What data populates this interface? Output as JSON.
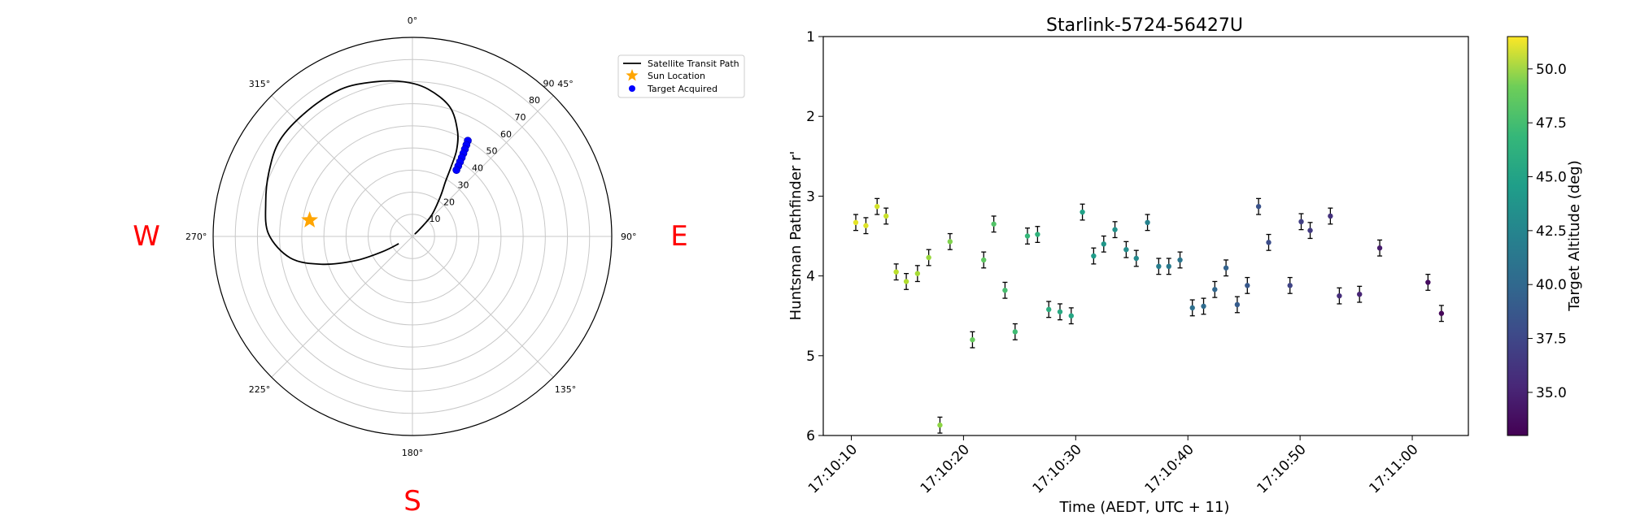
{
  "polar": {
    "angle_ticks": [
      {
        "deg": 0,
        "label": "0°"
      },
      {
        "deg": 45,
        "label": "45°"
      },
      {
        "deg": 90,
        "label": "90°"
      },
      {
        "deg": 135,
        "label": "135°"
      },
      {
        "deg": 180,
        "label": "180°"
      },
      {
        "deg": 225,
        "label": "225°"
      },
      {
        "deg": 270,
        "label": "270°"
      },
      {
        "deg": 315,
        "label": "315°"
      }
    ],
    "radial_ticks": [
      "10",
      "20",
      "30",
      "40",
      "50",
      "60",
      "70",
      "80",
      "90"
    ],
    "compass": {
      "west": "W",
      "east": "E",
      "south": "S"
    },
    "legend": {
      "path": "Satellite Transit Path",
      "sun": "Sun Location",
      "target": "Target Acquired"
    },
    "colors": {
      "path": "#000000",
      "sun": "#ffa500",
      "target": "#0000ff",
      "compass": "#ff0000"
    }
  },
  "chart_data": [
    {
      "type": "polar-line",
      "r_range": [
        0,
        90
      ],
      "theta_zero": "N",
      "theta_direction": "clockwise",
      "series": [
        {
          "name": "Satellite Transit Path",
          "points": [
            {
              "az": 45,
              "r": 1.5
            },
            {
              "az": 45,
              "r": 5
            },
            {
              "az": 42,
              "r": 13
            },
            {
              "az": 35,
              "r": 22
            },
            {
              "az": 31,
              "r": 29
            },
            {
              "az": 29,
              "r": 36
            },
            {
              "az": 27,
              "r": 44
            },
            {
              "az": 23,
              "r": 52
            },
            {
              "az": 16,
              "r": 61
            },
            {
              "az": 6,
              "r": 67
            },
            {
              "az": 357,
              "r": 70
            },
            {
              "az": 346,
              "r": 72
            },
            {
              "az": 334,
              "r": 74
            },
            {
              "az": 320,
              "r": 74
            },
            {
              "az": 306,
              "r": 74
            },
            {
              "az": 294,
              "r": 71
            },
            {
              "az": 283,
              "r": 68
            },
            {
              "az": 271,
              "r": 65
            },
            {
              "az": 260,
              "r": 56
            },
            {
              "az": 253,
              "r": 43
            },
            {
              "az": 247,
              "r": 28
            },
            {
              "az": 243,
              "r": 15
            },
            {
              "az": 242,
              "r": 7
            }
          ]
        },
        {
          "name": "Target Acquired",
          "points": [
            {
              "az": 30,
              "r": 50
            },
            {
              "az": 30.5,
              "r": 48
            },
            {
              "az": 31,
              "r": 46
            },
            {
              "az": 31.5,
              "r": 44
            },
            {
              "az": 32,
              "r": 42
            },
            {
              "az": 32.5,
              "r": 40
            },
            {
              "az": 33,
              "r": 38
            },
            {
              "az": 33.5,
              "r": 36
            }
          ]
        },
        {
          "name": "Sun Location",
          "points": [
            {
              "az": 279,
              "r": 47
            }
          ]
        }
      ]
    },
    {
      "type": "scatter",
      "title": "Starlink-5724-56427U",
      "xlabel": "Time (AEDT, UTC + 11)",
      "ylabel": "Huntsman Pathfinder r'",
      "x_ticks": [
        "17:10:10",
        "17:10:20",
        "17:10:30",
        "17:10:40",
        "17:10:50",
        "17:11:00"
      ],
      "xlim_seconds_after_17_10_00": [
        7.5,
        65
      ],
      "ylim": [
        6,
        1
      ],
      "y_inverted": true,
      "y_ticks": [
        1,
        2,
        3,
        4,
        5,
        6
      ],
      "colorbar": {
        "label": "Target Altitude (deg)",
        "range": [
          33,
          51.5
        ],
        "ticks": [
          "35.0",
          "37.5",
          "40.0",
          "42.5",
          "45.0",
          "47.5",
          "50.0"
        ],
        "colormap": "viridis"
      },
      "points": [
        {
          "t": 10.4,
          "mag": 3.33,
          "err": 0.1,
          "alt": 50.8
        },
        {
          "t": 11.3,
          "mag": 3.37,
          "err": 0.1,
          "alt": 50.6
        },
        {
          "t": 12.3,
          "mag": 3.13,
          "err": 0.1,
          "alt": 50.3
        },
        {
          "t": 13.1,
          "mag": 3.25,
          "err": 0.1,
          "alt": 50.0
        },
        {
          "t": 14.0,
          "mag": 3.95,
          "err": 0.1,
          "alt": 49.6
        },
        {
          "t": 14.9,
          "mag": 4.07,
          "err": 0.1,
          "alt": 49.3
        },
        {
          "t": 15.9,
          "mag": 3.97,
          "err": 0.1,
          "alt": 49.0
        },
        {
          "t": 16.9,
          "mag": 3.77,
          "err": 0.1,
          "alt": 48.6
        },
        {
          "t": 17.9,
          "mag": 5.87,
          "err": 0.1,
          "alt": 48.3
        },
        {
          "t": 18.8,
          "mag": 3.57,
          "err": 0.1,
          "alt": 47.9
        },
        {
          "t": 20.8,
          "mag": 4.8,
          "err": 0.1,
          "alt": 47.1
        },
        {
          "t": 21.8,
          "mag": 3.8,
          "err": 0.1,
          "alt": 46.8
        },
        {
          "t": 22.7,
          "mag": 3.35,
          "err": 0.1,
          "alt": 46.4
        },
        {
          "t": 23.7,
          "mag": 4.18,
          "err": 0.1,
          "alt": 46.0
        },
        {
          "t": 24.6,
          "mag": 4.7,
          "err": 0.1,
          "alt": 45.7
        },
        {
          "t": 25.7,
          "mag": 3.5,
          "err": 0.1,
          "alt": 45.3
        },
        {
          "t": 26.6,
          "mag": 3.48,
          "err": 0.1,
          "alt": 44.9
        },
        {
          "t": 27.6,
          "mag": 4.42,
          "err": 0.1,
          "alt": 44.6
        },
        {
          "t": 28.6,
          "mag": 4.45,
          "err": 0.1,
          "alt": 44.2
        },
        {
          "t": 29.6,
          "mag": 4.5,
          "err": 0.1,
          "alt": 43.9
        },
        {
          "t": 30.6,
          "mag": 3.2,
          "err": 0.1,
          "alt": 43.5
        },
        {
          "t": 31.6,
          "mag": 3.75,
          "err": 0.1,
          "alt": 43.1
        },
        {
          "t": 32.5,
          "mag": 3.6,
          "err": 0.1,
          "alt": 42.8
        },
        {
          "t": 33.5,
          "mag": 3.42,
          "err": 0.1,
          "alt": 42.4
        },
        {
          "t": 34.5,
          "mag": 3.67,
          "err": 0.1,
          "alt": 42.0
        },
        {
          "t": 35.4,
          "mag": 3.78,
          "err": 0.1,
          "alt": 41.7
        },
        {
          "t": 36.4,
          "mag": 3.33,
          "err": 0.1,
          "alt": 41.3
        },
        {
          "t": 37.4,
          "mag": 3.88,
          "err": 0.1,
          "alt": 40.9
        },
        {
          "t": 38.3,
          "mag": 3.88,
          "err": 0.1,
          "alt": 40.6
        },
        {
          "t": 39.3,
          "mag": 3.8,
          "err": 0.1,
          "alt": 40.2
        },
        {
          "t": 40.4,
          "mag": 4.4,
          "err": 0.1,
          "alt": 39.8
        },
        {
          "t": 41.4,
          "mag": 4.38,
          "err": 0.1,
          "alt": 39.5
        },
        {
          "t": 42.4,
          "mag": 4.17,
          "err": 0.1,
          "alt": 39.1
        },
        {
          "t": 43.4,
          "mag": 3.9,
          "err": 0.1,
          "alt": 38.8
        },
        {
          "t": 44.4,
          "mag": 4.36,
          "err": 0.1,
          "alt": 38.4
        },
        {
          "t": 45.3,
          "mag": 4.12,
          "err": 0.1,
          "alt": 38.1
        },
        {
          "t": 46.3,
          "mag": 3.13,
          "err": 0.1,
          "alt": 37.7
        },
        {
          "t": 47.2,
          "mag": 3.58,
          "err": 0.1,
          "alt": 37.4
        },
        {
          "t": 49.1,
          "mag": 4.12,
          "err": 0.1,
          "alt": 36.8
        },
        {
          "t": 50.1,
          "mag": 3.32,
          "err": 0.1,
          "alt": 36.5
        },
        {
          "t": 50.9,
          "mag": 3.43,
          "err": 0.1,
          "alt": 36.2
        },
        {
          "t": 52.7,
          "mag": 3.25,
          "err": 0.1,
          "alt": 35.7
        },
        {
          "t": 53.5,
          "mag": 4.25,
          "err": 0.1,
          "alt": 35.4
        },
        {
          "t": 55.3,
          "mag": 4.23,
          "err": 0.1,
          "alt": 34.9
        },
        {
          "t": 57.1,
          "mag": 3.65,
          "err": 0.1,
          "alt": 34.4
        },
        {
          "t": 61.4,
          "mag": 4.08,
          "err": 0.1,
          "alt": 33.6
        },
        {
          "t": 62.6,
          "mag": 4.47,
          "err": 0.1,
          "alt": 33.3
        }
      ]
    }
  ]
}
